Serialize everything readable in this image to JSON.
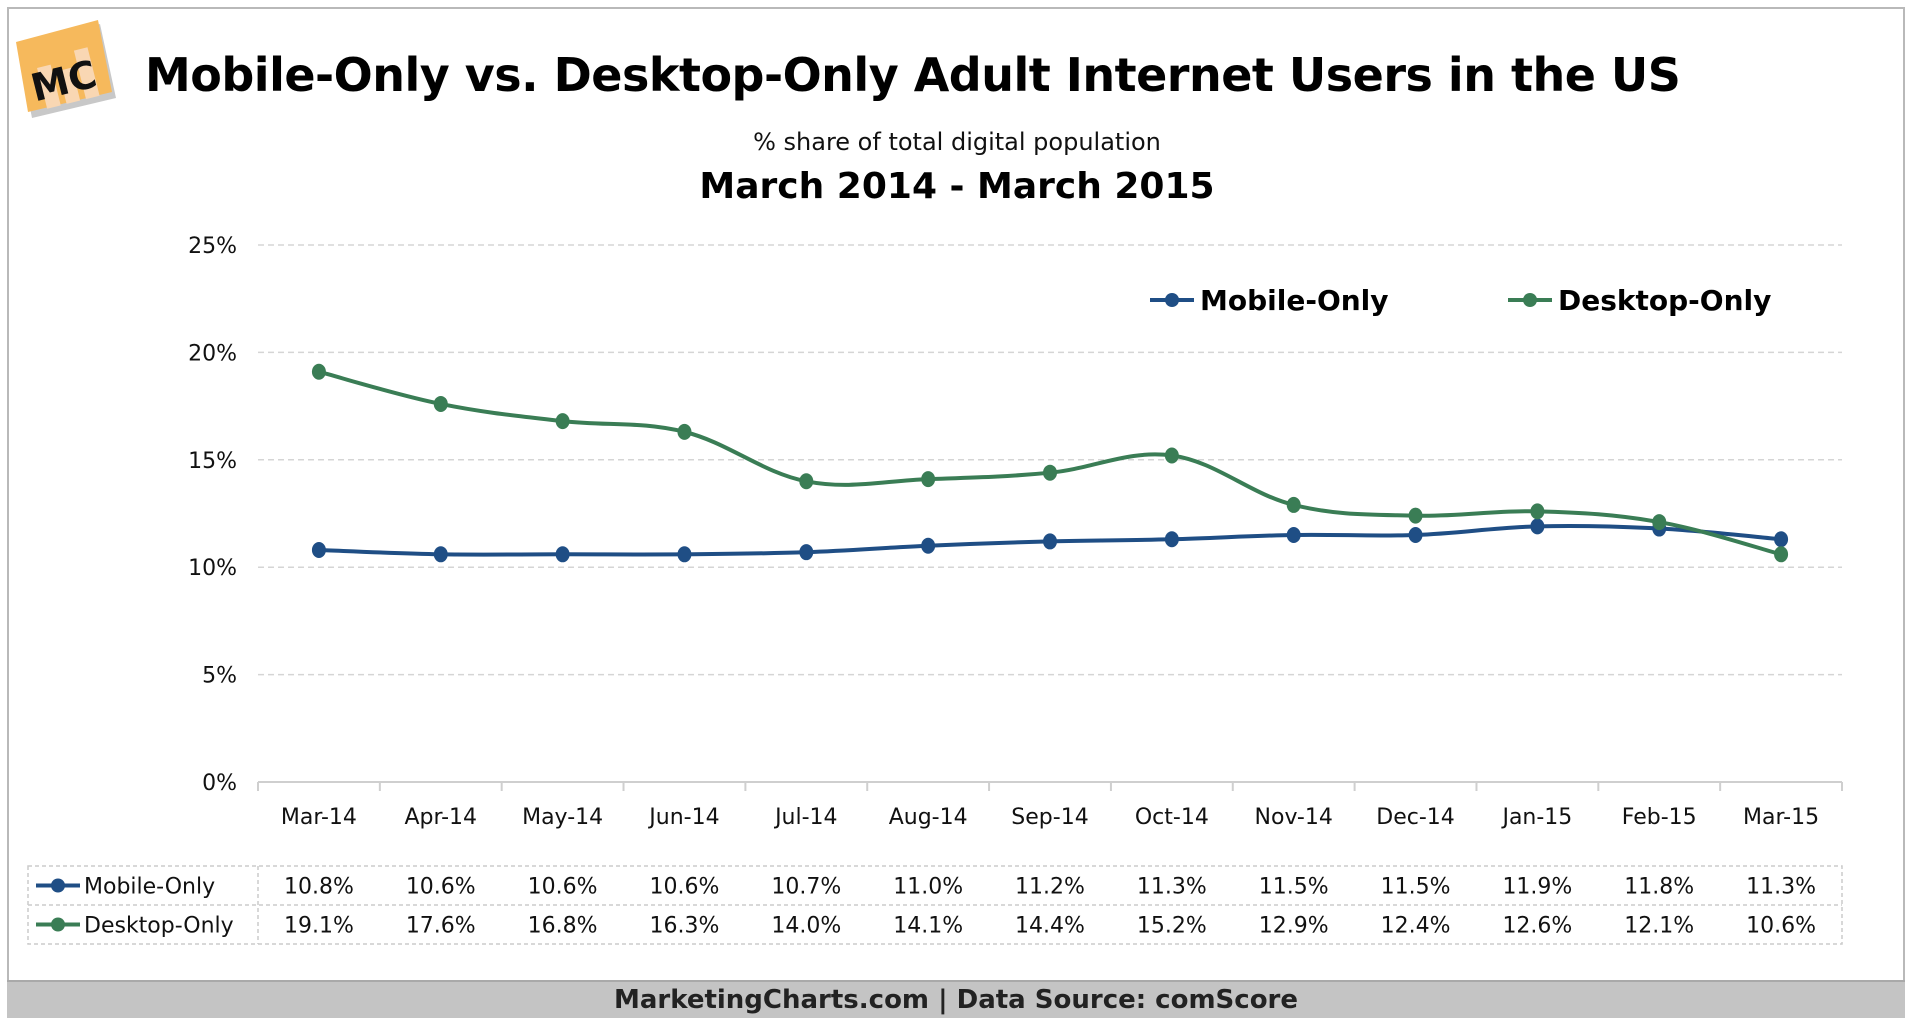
{
  "header": {
    "logo_text": "MC",
    "title": "Mobile-Only vs. Desktop-Only Adult Internet Users in the US",
    "subtitle": "% share of total digital population",
    "period": "March 2014 - March 2015"
  },
  "footer": {
    "text": "MarketingCharts.com | Data Source: comScore"
  },
  "colors": {
    "mobile": "#1f4e85",
    "desktop": "#3a7d55",
    "grid": "#d5d5d5",
    "footer_bg": "#c4c4c4",
    "logo": "#f6b95c"
  },
  "chart_data": {
    "type": "line",
    "title": "Mobile-Only vs. Desktop-Only Adult Internet Users in the US",
    "subtitle": "% share of total digital population",
    "xlabel": "",
    "ylabel": "",
    "ylim": [
      0,
      25
    ],
    "y_ticks": [
      0,
      5,
      10,
      15,
      20,
      25
    ],
    "y_tick_labels": [
      "0%",
      "5%",
      "10%",
      "15%",
      "20%",
      "25%"
    ],
    "grid": true,
    "legend_position": "top-right",
    "categories": [
      "Mar-14",
      "Apr-14",
      "May-14",
      "Jun-14",
      "Jul-14",
      "Aug-14",
      "Sep-14",
      "Oct-14",
      "Nov-14",
      "Dec-14",
      "Jan-15",
      "Feb-15",
      "Mar-15"
    ],
    "series": [
      {
        "name": "Mobile-Only",
        "color": "#1f4e85",
        "values": [
          10.8,
          10.6,
          10.6,
          10.6,
          10.7,
          11.0,
          11.2,
          11.3,
          11.5,
          11.5,
          11.9,
          11.8,
          11.3
        ],
        "labels": [
          "10.8%",
          "10.6%",
          "10.6%",
          "10.6%",
          "10.7%",
          "11.0%",
          "11.2%",
          "11.3%",
          "11.5%",
          "11.5%",
          "11.9%",
          "11.8%",
          "11.3%"
        ]
      },
      {
        "name": "Desktop-Only",
        "color": "#3a7d55",
        "values": [
          19.1,
          17.6,
          16.8,
          16.3,
          14.0,
          14.1,
          14.4,
          15.2,
          12.9,
          12.4,
          12.6,
          12.1,
          10.6
        ],
        "labels": [
          "19.1%",
          "17.6%",
          "16.8%",
          "16.3%",
          "14.0%",
          "14.1%",
          "14.4%",
          "15.2%",
          "12.9%",
          "12.4%",
          "12.6%",
          "12.1%",
          "10.6%"
        ]
      }
    ]
  }
}
